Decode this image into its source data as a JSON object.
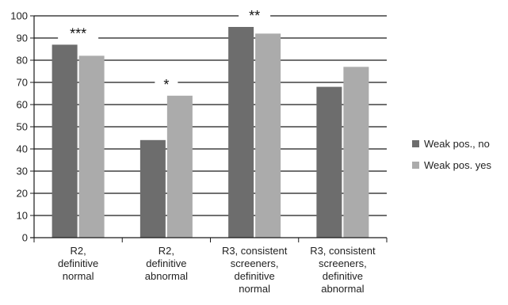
{
  "chart_data": {
    "type": "bar",
    "categories": [
      [
        "R2,",
        "definitive",
        "normal"
      ],
      [
        "R2,",
        "definitive",
        "abnormal"
      ],
      [
        "R3, consistent",
        "screeners,",
        "definitive",
        "normal"
      ],
      [
        "R3, consistent",
        "screeners,",
        "definitive",
        "abnormal"
      ]
    ],
    "series": [
      {
        "name": "Weak pos., no",
        "color": "#6d6d6d",
        "values": [
          87,
          44,
          95,
          68
        ]
      },
      {
        "name": "Weak pos. yes",
        "color": "#ababab",
        "values": [
          82,
          64,
          92,
          77
        ]
      }
    ],
    "yticks": [
      0,
      10,
      20,
      30,
      40,
      50,
      60,
      70,
      80,
      90,
      100
    ],
    "ylim": [
      0,
      100
    ],
    "annotations": [
      {
        "category": 0,
        "text": "***"
      },
      {
        "category": 1,
        "text": "*"
      },
      {
        "category": 2,
        "text": "**"
      }
    ],
    "grid": true,
    "legend": "right"
  }
}
